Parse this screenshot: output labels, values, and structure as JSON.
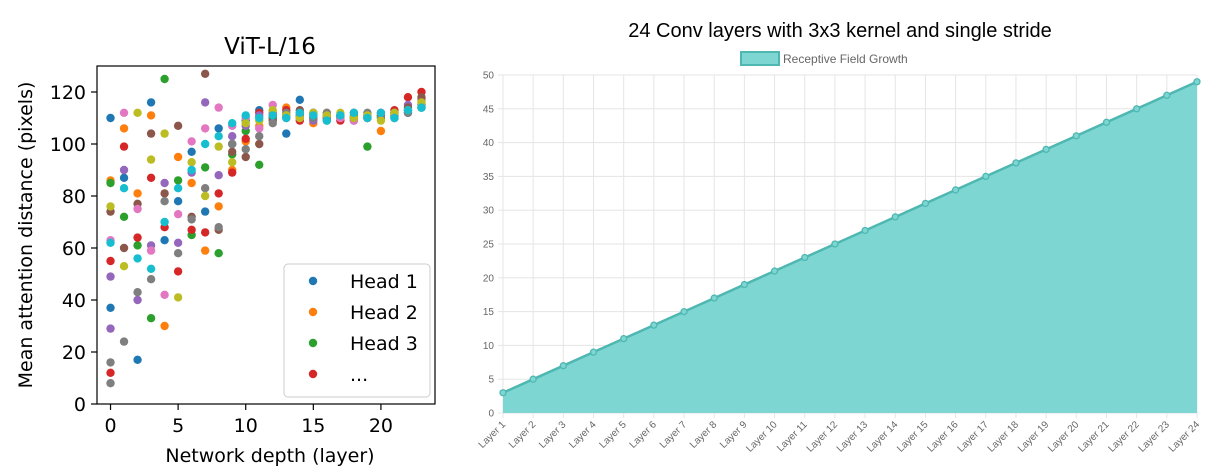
{
  "chart_data": [
    {
      "type": "scatter",
      "title": "ViT-L/16",
      "xlabel": "Network depth (layer)",
      "ylabel": "Mean attention distance (pixels)",
      "xlim": [
        -1,
        24
      ],
      "ylim": [
        0,
        130
      ],
      "xticks": [
        0,
        5,
        10,
        15,
        20
      ],
      "yticks": [
        0,
        20,
        40,
        60,
        80,
        100,
        120
      ],
      "legend_position": "bottom-right",
      "legend": [
        "Head 1",
        "Head 2",
        "Head 3",
        "..."
      ],
      "colors": [
        "#1f77b4",
        "#ff7f0e",
        "#2ca02c",
        "#d62728",
        "#9467bd",
        "#8c564b",
        "#e377c2",
        "#7f7f7f",
        "#bcbd22",
        "#17becf"
      ],
      "series": [
        {
          "name": "Head 1",
          "color": "#1f77b4",
          "points": [
            [
              0,
              110
            ],
            [
              0,
              37
            ],
            [
              1,
              87
            ],
            [
              2,
              17
            ],
            [
              3,
              116
            ],
            [
              4,
              63
            ],
            [
              5,
              78
            ],
            [
              6,
              97
            ],
            [
              7,
              74
            ],
            [
              8,
              106
            ],
            [
              9,
              100
            ],
            [
              10,
              109
            ],
            [
              11,
              113
            ],
            [
              12,
              110
            ],
            [
              13,
              104
            ],
            [
              14,
              117
            ],
            [
              15,
              112
            ],
            [
              16,
              111
            ],
            [
              17,
              110
            ],
            [
              18,
              109
            ],
            [
              19,
              111
            ],
            [
              20,
              111
            ],
            [
              21,
              110
            ],
            [
              22,
              112
            ],
            [
              23,
              114
            ]
          ]
        },
        {
          "name": "Head 2",
          "color": "#ff7f0e",
          "points": [
            [
              0,
              86
            ],
            [
              1,
              106
            ],
            [
              2,
              81
            ],
            [
              3,
              111
            ],
            [
              4,
              30
            ],
            [
              5,
              95
            ],
            [
              6,
              85
            ],
            [
              7,
              59
            ],
            [
              8,
              76
            ],
            [
              9,
              90
            ],
            [
              10,
              101
            ],
            [
              11,
              107
            ],
            [
              12,
              112
            ],
            [
              13,
              114
            ],
            [
              14,
              110
            ],
            [
              15,
              108
            ],
            [
              16,
              112
            ],
            [
              17,
              111
            ],
            [
              18,
              110
            ],
            [
              19,
              110
            ],
            [
              20,
              105
            ],
            [
              21,
              111
            ],
            [
              22,
              113
            ],
            [
              23,
              116
            ]
          ]
        },
        {
          "name": "Head 3",
          "color": "#2ca02c",
          "points": [
            [
              0,
              85
            ],
            [
              1,
              72
            ],
            [
              2,
              61
            ],
            [
              3,
              33
            ],
            [
              4,
              125
            ],
            [
              5,
              86
            ],
            [
              6,
              65
            ],
            [
              7,
              91
            ],
            [
              8,
              58
            ],
            [
              9,
              96
            ],
            [
              10,
              105
            ],
            [
              11,
              92
            ],
            [
              12,
              110
            ],
            [
              13,
              111
            ],
            [
              14,
              112
            ],
            [
              15,
              110
            ],
            [
              16,
              109
            ],
            [
              17,
              110
            ],
            [
              18,
              111
            ],
            [
              19,
              99
            ],
            [
              20,
              110
            ],
            [
              21,
              112
            ],
            [
              22,
              113
            ],
            [
              23,
              114
            ]
          ]
        },
        {
          "name": "...",
          "color": "#d62728",
          "points": [
            [
              0,
              55
            ],
            [
              0,
              12
            ],
            [
              1,
              99
            ],
            [
              2,
              64
            ],
            [
              3,
              87
            ],
            [
              4,
              68
            ],
            [
              5,
              51
            ],
            [
              6,
              67
            ],
            [
              7,
              66
            ],
            [
              8,
              81
            ],
            [
              9,
              89
            ],
            [
              10,
              102
            ],
            [
              11,
              112
            ],
            [
              12,
              111
            ],
            [
              13,
              113
            ],
            [
              14,
              109
            ],
            [
              15,
              110
            ],
            [
              16,
              110
            ],
            [
              17,
              109
            ],
            [
              18,
              110
            ],
            [
              19,
              111
            ],
            [
              20,
              112
            ],
            [
              21,
              113
            ],
            [
              22,
              118
            ],
            [
              23,
              120
            ]
          ]
        },
        {
          "color": "#9467bd",
          "points": [
            [
              0,
              49
            ],
            [
              0,
              29
            ],
            [
              1,
              90
            ],
            [
              2,
              40
            ],
            [
              3,
              61
            ],
            [
              4,
              85
            ],
            [
              5,
              62
            ],
            [
              6,
              89
            ],
            [
              7,
              116
            ],
            [
              8,
              88
            ],
            [
              9,
              103
            ],
            [
              10,
              107
            ],
            [
              11,
              111
            ],
            [
              12,
              112
            ],
            [
              13,
              110
            ],
            [
              14,
              111
            ],
            [
              15,
              109
            ],
            [
              16,
              110
            ],
            [
              17,
              111
            ],
            [
              18,
              110
            ],
            [
              19,
              111
            ],
            [
              20,
              111
            ],
            [
              21,
              112
            ],
            [
              22,
              115
            ],
            [
              23,
              117
            ]
          ]
        },
        {
          "color": "#8c564b",
          "points": [
            [
              0,
              74
            ],
            [
              1,
              60
            ],
            [
              2,
              77
            ],
            [
              3,
              104
            ],
            [
              4,
              81
            ],
            [
              5,
              107
            ],
            [
              6,
              72
            ],
            [
              7,
              127
            ],
            [
              8,
              67
            ],
            [
              9,
              97
            ],
            [
              10,
              95
            ],
            [
              11,
              100
            ],
            [
              12,
              109
            ],
            [
              13,
              111
            ],
            [
              14,
              113
            ],
            [
              15,
              112
            ],
            [
              16,
              110
            ],
            [
              17,
              111
            ],
            [
              18,
              112
            ],
            [
              19,
              110
            ],
            [
              20,
              111
            ],
            [
              21,
              112
            ],
            [
              22,
              114
            ],
            [
              23,
              118
            ]
          ]
        },
        {
          "color": "#e377c2",
          "points": [
            [
              0,
              63
            ],
            [
              1,
              112
            ],
            [
              2,
              75
            ],
            [
              3,
              59
            ],
            [
              4,
              42
            ],
            [
              5,
              73
            ],
            [
              6,
              101
            ],
            [
              7,
              106
            ],
            [
              8,
              114
            ],
            [
              9,
              107
            ],
            [
              10,
              110
            ],
            [
              11,
              106
            ],
            [
              12,
              115
            ],
            [
              13,
              111
            ],
            [
              14,
              110
            ],
            [
              15,
              111
            ],
            [
              16,
              111
            ],
            [
              17,
              110
            ],
            [
              18,
              109
            ],
            [
              19,
              111
            ],
            [
              20,
              112
            ],
            [
              21,
              111
            ],
            [
              22,
              113
            ],
            [
              23,
              115
            ]
          ]
        },
        {
          "color": "#7f7f7f",
          "points": [
            [
              0,
              8
            ],
            [
              0,
              16
            ],
            [
              1,
              24
            ],
            [
              2,
              43
            ],
            [
              3,
              48
            ],
            [
              4,
              78
            ],
            [
              5,
              58
            ],
            [
              6,
              71
            ],
            [
              7,
              83
            ],
            [
              8,
              68
            ],
            [
              9,
              100
            ],
            [
              10,
              98
            ],
            [
              11,
              103
            ],
            [
              12,
              108
            ],
            [
              13,
              112
            ],
            [
              14,
              111
            ],
            [
              15,
              110
            ],
            [
              16,
              112
            ],
            [
              17,
              111
            ],
            [
              18,
              110
            ],
            [
              19,
              112
            ],
            [
              20,
              111
            ],
            [
              21,
              111
            ],
            [
              22,
              112
            ],
            [
              23,
              115
            ]
          ]
        },
        {
          "color": "#bcbd22",
          "points": [
            [
              0,
              76
            ],
            [
              1,
              53
            ],
            [
              2,
              112
            ],
            [
              3,
              94
            ],
            [
              4,
              104
            ],
            [
              5,
              41
            ],
            [
              6,
              93
            ],
            [
              7,
              80
            ],
            [
              8,
              99
            ],
            [
              9,
              93
            ],
            [
              10,
              108
            ],
            [
              11,
              109
            ],
            [
              12,
              113
            ],
            [
              13,
              111
            ],
            [
              14,
              110
            ],
            [
              15,
              112
            ],
            [
              16,
              111
            ],
            [
              17,
              112
            ],
            [
              18,
              110
            ],
            [
              19,
              111
            ],
            [
              20,
              109
            ],
            [
              21,
              112
            ],
            [
              22,
              113
            ],
            [
              23,
              116
            ]
          ]
        },
        {
          "color": "#17becf",
          "points": [
            [
              0,
              62
            ],
            [
              1,
              83
            ],
            [
              2,
              56
            ],
            [
              3,
              52
            ],
            [
              4,
              70
            ],
            [
              5,
              83
            ],
            [
              6,
              90
            ],
            [
              7,
              100
            ],
            [
              8,
              103
            ],
            [
              9,
              108
            ],
            [
              10,
              111
            ],
            [
              11,
              110
            ],
            [
              12,
              111
            ],
            [
              13,
              110
            ],
            [
              14,
              112
            ],
            [
              15,
              111
            ],
            [
              16,
              109
            ],
            [
              17,
              111
            ],
            [
              18,
              112
            ],
            [
              19,
              110
            ],
            [
              20,
              112
            ],
            [
              21,
              110
            ],
            [
              22,
              113
            ],
            [
              23,
              114
            ]
          ]
        }
      ]
    },
    {
      "type": "area",
      "title": "24 Conv layers with 3x3 kernel and single stride",
      "legend": [
        "Receptive Field Growth"
      ],
      "legend_position": "top-center",
      "fill_color": "#7dd6d2",
      "line_color": "#4fb7b1",
      "ylim": [
        0,
        50
      ],
      "yticks": [
        0,
        5,
        10,
        15,
        20,
        25,
        30,
        35,
        40,
        45,
        50
      ],
      "categories": [
        "Layer 1",
        "Layer 2",
        "Layer 3",
        "Layer 4",
        "Layer 5",
        "Layer 6",
        "Layer 7",
        "Layer 8",
        "Layer 9",
        "Layer 10",
        "Layer 11",
        "Layer 12",
        "Layer 13",
        "Layer 14",
        "Layer 15",
        "Layer 16",
        "Layer 17",
        "Layer 18",
        "Layer 19",
        "Layer 20",
        "Layer 21",
        "Layer 22",
        "Layer 23",
        "Layer 24"
      ],
      "series": [
        {
          "name": "Receptive Field Growth",
          "values": [
            3,
            5,
            7,
            9,
            11,
            13,
            15,
            17,
            19,
            21,
            23,
            25,
            27,
            29,
            31,
            33,
            35,
            37,
            39,
            41,
            43,
            45,
            47,
            49
          ]
        }
      ]
    }
  ]
}
